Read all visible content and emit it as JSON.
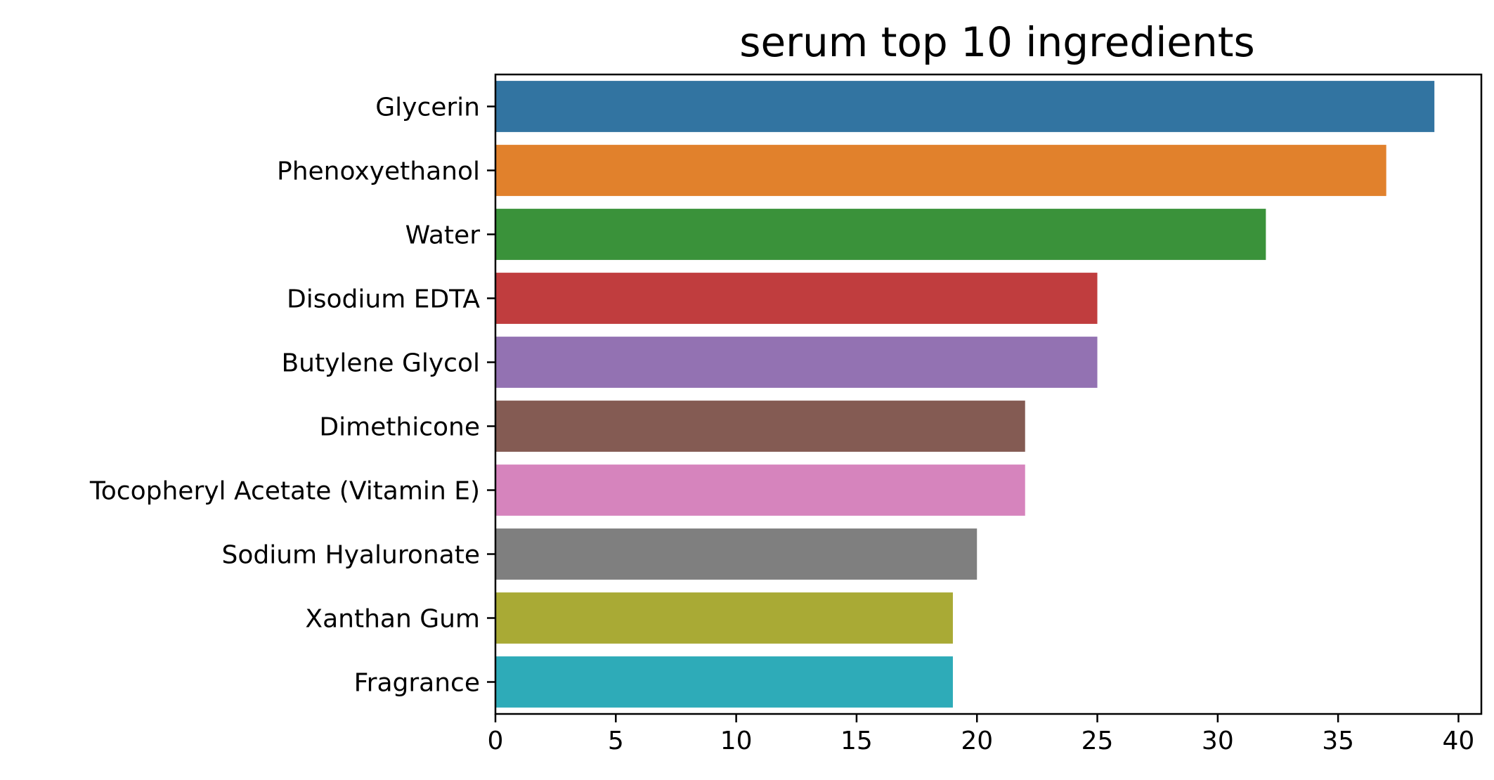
{
  "chart_data": {
    "type": "bar",
    "orientation": "horizontal",
    "title": "serum top 10 ingredients",
    "xlabel": "",
    "ylabel": "",
    "categories": [
      "Glycerin",
      "Phenoxyethanol",
      "Water",
      "Disodium EDTA",
      "Butylene Glycol",
      "Dimethicone",
      "Tocopheryl Acetate (Vitamin E)",
      "Sodium Hyaluronate",
      "Xanthan Gum",
      "Fragrance"
    ],
    "values": [
      39,
      37,
      32,
      25,
      25,
      22,
      22,
      20,
      19,
      19
    ],
    "colors": [
      "#3274a1",
      "#e1812c",
      "#3a923a",
      "#c03d3e",
      "#9372b2",
      "#845b53",
      "#d684bd",
      "#7f7f7f",
      "#a9aa35",
      "#2eabb8"
    ],
    "xlim": [
      0,
      40.95
    ],
    "xticks": [
      0,
      5,
      10,
      15,
      20,
      25,
      30,
      35,
      40
    ],
    "grid": false,
    "legend": "none"
  }
}
